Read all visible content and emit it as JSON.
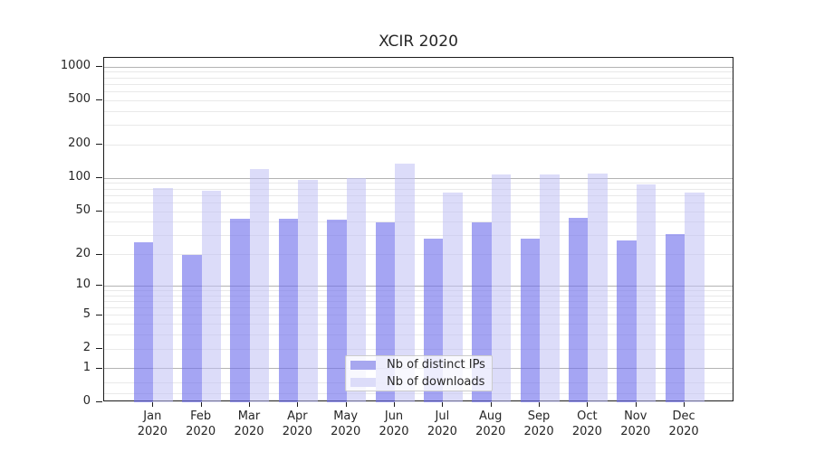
{
  "title": "XCIR 2020",
  "chart_data": {
    "type": "bar",
    "title": "XCIR 2020",
    "categories": [
      "Jan 2020",
      "Feb 2020",
      "Mar 2020",
      "Apr 2020",
      "May 2020",
      "Jun 2020",
      "Jul 2020",
      "Aug 2020",
      "Sep 2020",
      "Oct 2020",
      "Nov 2020",
      "Dec 2020"
    ],
    "series": [
      {
        "name": "Nb of distinct IPs",
        "values": [
          26,
          20,
          43,
          43,
          42,
          40,
          28,
          40,
          28,
          44,
          27,
          31
        ]
      },
      {
        "name": "Nb of downloads",
        "values": [
          82,
          78,
          122,
          97,
          101,
          135,
          75,
          109,
          109,
          111,
          88,
          75
        ]
      }
    ],
    "xlabel": "",
    "ylabel": "",
    "yscale": "symlog-log1p",
    "ylim": [
      0,
      1000
    ],
    "yticks": [
      0,
      1,
      2,
      5,
      10,
      20,
      50,
      100,
      200,
      500,
      1000
    ],
    "grid_major": [
      1,
      10,
      100,
      1000
    ],
    "grid_minor": [
      0.2,
      0.5,
      2,
      3,
      4,
      5,
      6,
      7,
      8,
      9,
      20,
      30,
      40,
      50,
      60,
      70,
      80,
      90,
      200,
      300,
      400,
      500,
      600,
      700,
      800,
      900
    ],
    "grid": "both",
    "legend_position": "lower-center"
  },
  "colors": {
    "bar_distinct_ips": "rgba(110,110,235,0.62)",
    "bar_downloads": "rgba(192,192,244,0.55)",
    "legend_swatch_ips": "#a7a7ef",
    "legend_swatch_downloads": "#dcdcf9",
    "grid_major": "#b3b3b3",
    "grid_minor": "#e9e9e9",
    "axis": "#1a1a1a"
  }
}
